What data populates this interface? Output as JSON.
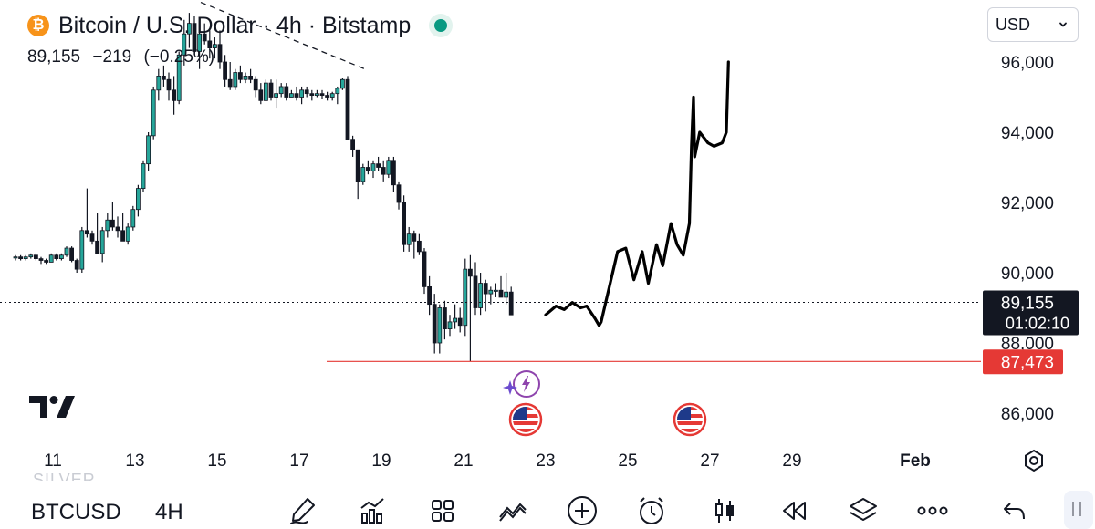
{
  "header": {
    "title": "Bitcoin / U.S. Dollar · 4h · Bitstamp",
    "logo_letter": "₿",
    "quote": {
      "last": "89,155",
      "change": "−219",
      "change_pct": "(−0.25%)"
    }
  },
  "currency_select": {
    "value": "USD"
  },
  "chart_data": {
    "type": "candlestick",
    "ylim": [
      85000,
      97500
    ],
    "y_ticks": [
      {
        "value": 96000,
        "label": "96,000"
      },
      {
        "value": 94000,
        "label": "94,000"
      },
      {
        "value": 92000,
        "label": "92,000"
      },
      {
        "value": 90000,
        "label": "90,000"
      },
      {
        "value": 88000,
        "label": "88,000"
      },
      {
        "value": 86000,
        "label": "86,000"
      }
    ],
    "x_ticks": [
      {
        "day": 11,
        "label": "11"
      },
      {
        "day": 13,
        "label": "13"
      },
      {
        "day": 15,
        "label": "15"
      },
      {
        "day": 17,
        "label": "17"
      },
      {
        "day": 19,
        "label": "19"
      },
      {
        "day": 21,
        "label": "21"
      },
      {
        "day": 23,
        "label": "23"
      },
      {
        "day": 25,
        "label": "25"
      },
      {
        "day": 27,
        "label": "27"
      },
      {
        "day": 29,
        "label": "29"
      },
      {
        "day": 32,
        "label": "Feb"
      }
    ],
    "candles_ohlc": [
      [
        90450,
        90500,
        90350,
        90450
      ],
      [
        90450,
        90500,
        90350,
        90400
      ],
      [
        90400,
        90500,
        90350,
        90450
      ],
      [
        90450,
        90550,
        90400,
        90500
      ],
      [
        90500,
        90550,
        90350,
        90400
      ],
      [
        90400,
        90450,
        90250,
        90350
      ],
      [
        90350,
        90400,
        90250,
        90300
      ],
      [
        90300,
        90550,
        90300,
        90500
      ],
      [
        90500,
        90550,
        90350,
        90400
      ],
      [
        90400,
        90550,
        90350,
        90500
      ],
      [
        90500,
        90750,
        90450,
        90700
      ],
      [
        90700,
        90750,
        90300,
        90350
      ],
      [
        90350,
        90400,
        90000,
        90100
      ],
      [
        90100,
        91300,
        90000,
        91200
      ],
      [
        91200,
        92400,
        91000,
        91100
      ],
      [
        91100,
        91200,
        90800,
        90900
      ],
      [
        90900,
        91700,
        90600,
        90550
      ],
      [
        90550,
        91300,
        90300,
        91200
      ],
      [
        91200,
        91700,
        91000,
        91500
      ],
      [
        91500,
        92000,
        91200,
        91300
      ],
      [
        91300,
        91600,
        91000,
        91200
      ],
      [
        91200,
        91700,
        91000,
        90900
      ],
      [
        90900,
        91400,
        90800,
        91300
      ],
      [
        91300,
        91900,
        91200,
        91800
      ],
      [
        91800,
        92500,
        91600,
        92400
      ],
      [
        92400,
        93200,
        92300,
        93100
      ],
      [
        93100,
        94000,
        92900,
        93900
      ],
      [
        93900,
        95300,
        93800,
        95200
      ],
      [
        95200,
        95800,
        94900,
        95600
      ],
      [
        95600,
        95900,
        95300,
        95500
      ],
      [
        95500,
        95700,
        94900,
        95200
      ],
      [
        95200,
        95600,
        94500,
        94900
      ],
      [
        94900,
        96300,
        94800,
        96200
      ],
      [
        96200,
        97200,
        95900,
        96800
      ],
      [
        96800,
        97400,
        96400,
        97100
      ],
      [
        97100,
        97300,
        96200,
        96300
      ],
      [
        96300,
        97000,
        95800,
        96800
      ],
      [
        96800,
        97100,
        96500,
        96600
      ],
      [
        96600,
        96900,
        96100,
        96400
      ],
      [
        96400,
        96700,
        96100,
        96500
      ],
      [
        96500,
        96900,
        95800,
        96000
      ],
      [
        96000,
        96200,
        95300,
        95500
      ],
      [
        95500,
        96000,
        95200,
        95300
      ],
      [
        95300,
        95800,
        95200,
        95700
      ],
      [
        95700,
        95900,
        95400,
        95500
      ],
      [
        95500,
        95700,
        95400,
        95600
      ],
      [
        95600,
        95800,
        95400,
        95500
      ],
      [
        95500,
        95600,
        95000,
        95200
      ],
      [
        95200,
        95400,
        94800,
        94900
      ],
      [
        94900,
        95500,
        94900,
        95400
      ],
      [
        95400,
        95500,
        94900,
        95000
      ],
      [
        95000,
        95500,
        94700,
        95100
      ],
      [
        95100,
        95400,
        95000,
        95300
      ],
      [
        95300,
        95400,
        94900,
        95000
      ],
      [
        95000,
        95200,
        95000,
        95100
      ],
      [
        95100,
        95300,
        94900,
        95000
      ],
      [
        95000,
        95300,
        94800,
        95200
      ],
      [
        95200,
        95300,
        95000,
        95100
      ],
      [
        95100,
        95200,
        94900,
        95050
      ],
      [
        95050,
        95200,
        95000,
        95100
      ],
      [
        95100,
        95200,
        94950,
        95050
      ],
      [
        95050,
        95150,
        94900,
        95000
      ],
      [
        95000,
        95150,
        94900,
        95100
      ],
      [
        95100,
        95300,
        94800,
        95250
      ],
      [
        95250,
        95550,
        95200,
        95500
      ],
      [
        95500,
        95600,
        93800,
        93800
      ],
      [
        93800,
        93900,
        93300,
        93500
      ],
      [
        93500,
        93500,
        92100,
        92600
      ],
      [
        92600,
        93100,
        92500,
        93000
      ],
      [
        93000,
        93200,
        92800,
        92900
      ],
      [
        92900,
        93200,
        92700,
        93100
      ],
      [
        93100,
        93300,
        92900,
        93000
      ],
      [
        93000,
        93200,
        92600,
        92800
      ],
      [
        92800,
        93300,
        92700,
        93200
      ],
      [
        93200,
        93300,
        92300,
        92500
      ],
      [
        92500,
        92600,
        91800,
        92000
      ],
      [
        92000,
        92200,
        90600,
        90800
      ],
      [
        90800,
        91300,
        90600,
        91100
      ],
      [
        91100,
        91200,
        90400,
        90900
      ],
      [
        90900,
        91100,
        90500,
        90600
      ],
      [
        90600,
        90700,
        89400,
        89600
      ],
      [
        89600,
        89900,
        88800,
        89100
      ],
      [
        89100,
        89400,
        87700,
        88000
      ],
      [
        88000,
        89100,
        87700,
        89000
      ],
      [
        89000,
        89200,
        88100,
        88400
      ],
      [
        88400,
        88800,
        88200,
        88600
      ],
      [
        88600,
        89100,
        88400,
        88700
      ],
      [
        88700,
        89000,
        88300,
        88500
      ],
      [
        88500,
        90400,
        88200,
        90100
      ],
      [
        90100,
        90500,
        87473,
        89900
      ],
      [
        89900,
        90300,
        88800,
        89000
      ],
      [
        89000,
        90000,
        88800,
        89700
      ],
      [
        89700,
        89800,
        88900,
        89400
      ],
      [
        89400,
        89600,
        89100,
        89500
      ],
      [
        89500,
        89700,
        89300,
        89500
      ],
      [
        89500,
        89900,
        89300,
        89300
      ],
      [
        89300,
        90000,
        89100,
        89450
      ],
      [
        89450,
        89600,
        88900,
        88800
      ]
    ],
    "last_price": {
      "value": 89155,
      "label": "89,155",
      "countdown": "01:02:10"
    },
    "support_level": {
      "value": 87473,
      "label": "87,473"
    },
    "drawing_path": [
      [
        23.0,
        88800
      ],
      [
        23.25,
        89050
      ],
      [
        23.45,
        88950
      ],
      [
        23.65,
        89150
      ],
      [
        23.85,
        89000
      ],
      [
        24.0,
        89050
      ],
      [
        24.2,
        88700
      ],
      [
        24.3,
        88500
      ],
      [
        24.35,
        88600
      ],
      [
        24.55,
        89600
      ],
      [
        24.75,
        90600
      ],
      [
        24.95,
        90700
      ],
      [
        25.15,
        89800
      ],
      [
        25.35,
        90600
      ],
      [
        25.5,
        89700
      ],
      [
        25.7,
        90800
      ],
      [
        25.85,
        90200
      ],
      [
        26.05,
        91400
      ],
      [
        26.2,
        90800
      ],
      [
        26.35,
        90500
      ],
      [
        26.5,
        91400
      ],
      [
        26.55,
        93600
      ],
      [
        26.6,
        95000
      ],
      [
        26.63,
        93300
      ],
      [
        26.75,
        94000
      ],
      [
        26.95,
        93700
      ],
      [
        27.1,
        93600
      ],
      [
        27.3,
        93700
      ],
      [
        27.4,
        94000
      ],
      [
        27.45,
        96000
      ]
    ],
    "trend_line": [
      [
        14.6,
        97700
      ],
      [
        18.6,
        95800
      ]
    ],
    "grid": false
  },
  "toolbar": {
    "symbol": "BTCUSD",
    "interval": "4H",
    "ghost_label": "SILVER",
    "tools": [
      "brush-icon",
      "indicators-icon",
      "templates-icon",
      "compare-icon",
      "add-icon",
      "alert-icon",
      "chart-style-icon",
      "replay-icon",
      "layers-icon",
      "more-icon",
      "undo-icon"
    ]
  },
  "colors": {
    "up": "#26a69a",
    "down": "#131722",
    "red_line": "#e53935",
    "last_price_bg": "#131722"
  }
}
